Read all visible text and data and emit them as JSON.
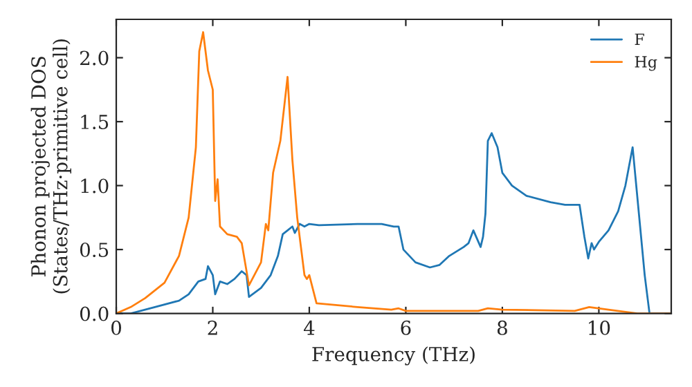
{
  "chart_data": {
    "type": "line",
    "xlabel": "Frequency (THz)",
    "ylabel": "Phonon projected DOS\n(States/THz·primitive cell)",
    "xlim": [
      0,
      11.5
    ],
    "ylim": [
      0,
      2.3
    ],
    "xticks": [
      0,
      2,
      4,
      6,
      8,
      10
    ],
    "yticks": [
      {
        "value": 0,
        "label": "0.0"
      },
      {
        "value": 0.5,
        "label": "0.5"
      },
      {
        "value": 1,
        "label": "1.0"
      },
      {
        "value": 1.5,
        "label": "1.5"
      },
      {
        "value": 2,
        "label": "2.0"
      }
    ],
    "grid": false,
    "legend": "top right",
    "line_style": "solid",
    "series": [
      {
        "name": "F",
        "color": "#1f77b4",
        "x": [
          0,
          0.3,
          0.8,
          1.3,
          1.5,
          1.7,
          1.85,
          1.9,
          2.0,
          2.05,
          2.15,
          2.3,
          2.45,
          2.6,
          2.7,
          2.75,
          3.0,
          3.2,
          3.35,
          3.45,
          3.55,
          3.65,
          3.7,
          3.8,
          3.9,
          4.0,
          4.2,
          5.0,
          5.5,
          5.75,
          5.85,
          5.95,
          6.2,
          6.5,
          6.7,
          6.9,
          7.2,
          7.3,
          7.4,
          7.55,
          7.6,
          7.65,
          7.7,
          7.78,
          7.9,
          8.0,
          8.2,
          8.5,
          9.0,
          9.3,
          9.6,
          9.7,
          9.78,
          9.85,
          9.9,
          10.0,
          10.2,
          10.4,
          10.55,
          10.7,
          10.95,
          11.05,
          11.5
        ],
        "values": [
          0,
          0,
          0.05,
          0.1,
          0.15,
          0.25,
          0.27,
          0.37,
          0.3,
          0.15,
          0.25,
          0.23,
          0.27,
          0.33,
          0.3,
          0.13,
          0.2,
          0.3,
          0.45,
          0.62,
          0.65,
          0.68,
          0.63,
          0.7,
          0.68,
          0.7,
          0.69,
          0.7,
          0.7,
          0.68,
          0.68,
          0.5,
          0.4,
          0.36,
          0.38,
          0.45,
          0.52,
          0.55,
          0.65,
          0.52,
          0.6,
          0.78,
          1.35,
          1.41,
          1.3,
          1.1,
          1.0,
          0.92,
          0.87,
          0.85,
          0.85,
          0.6,
          0.43,
          0.55,
          0.5,
          0.56,
          0.65,
          0.8,
          1.0,
          1.3,
          0.3,
          0,
          0
        ]
      },
      {
        "name": "Hg",
        "color": "#ff7f0e",
        "x": [
          0,
          0.3,
          0.6,
          1.0,
          1.3,
          1.5,
          1.65,
          1.72,
          1.8,
          1.9,
          2.0,
          2.05,
          2.1,
          2.15,
          2.3,
          2.5,
          2.6,
          2.75,
          3.0,
          3.1,
          3.15,
          3.25,
          3.4,
          3.55,
          3.65,
          3.75,
          3.9,
          3.95,
          4.0,
          4.15,
          5.0,
          5.7,
          5.85,
          6.0,
          7.0,
          7.5,
          7.7,
          8.0,
          9.5,
          9.8,
          10.2,
          10.8,
          11.5
        ],
        "values": [
          0,
          0.05,
          0.12,
          0.24,
          0.45,
          0.75,
          1.3,
          2.05,
          2.2,
          1.9,
          1.75,
          0.88,
          1.05,
          0.68,
          0.62,
          0.6,
          0.55,
          0.22,
          0.4,
          0.7,
          0.65,
          1.1,
          1.35,
          1.85,
          1.2,
          0.75,
          0.3,
          0.27,
          0.3,
          0.08,
          0.05,
          0.03,
          0.04,
          0.02,
          0.02,
          0.02,
          0.04,
          0.03,
          0.02,
          0.05,
          0.03,
          0,
          0
        ]
      }
    ]
  }
}
